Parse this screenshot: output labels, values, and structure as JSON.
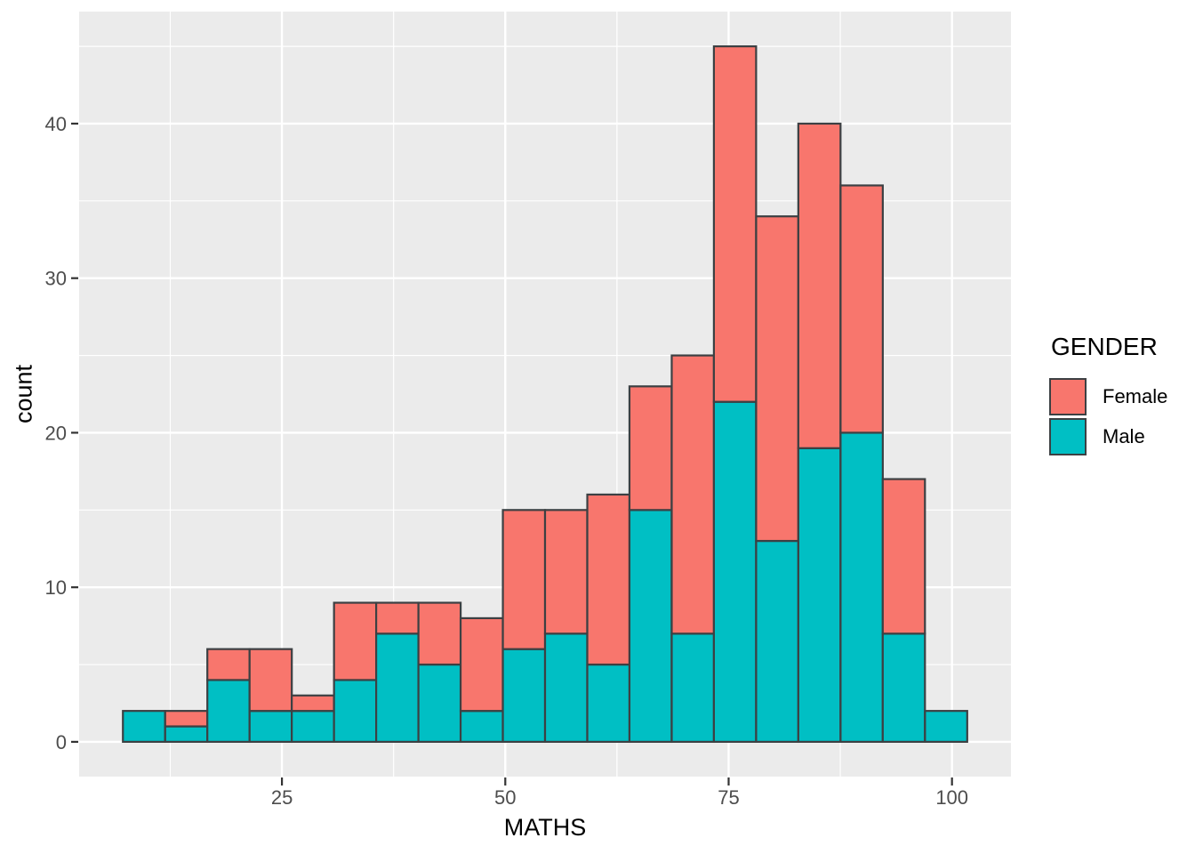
{
  "figure": {
    "background": "#FFFFFF"
  },
  "colors": {
    "panel_background": "#EBEBEB",
    "gridline": "#FFFFFF",
    "bar_outline": "#3C4043",
    "axis_text": "#4D4D4D",
    "tick_mark": "#333333",
    "axis_title": "#000000",
    "female": "#F8766D",
    "male": "#00BFC4"
  },
  "axes": {
    "x_title": "MATHS",
    "y_title": "count"
  },
  "legend": {
    "title": "GENDER",
    "entries": [
      {
        "label": "Female",
        "color": "#F8766D"
      },
      {
        "label": "Male",
        "color": "#00BFC4"
      }
    ]
  },
  "chart_data": {
    "type": "bar",
    "subtype": "stacked-histogram",
    "title": "",
    "xlabel": "MATHS",
    "ylabel": "count",
    "stacked": true,
    "grid": true,
    "legend_position": "right",
    "legend_title": "GENDER",
    "bin_width": 4.725,
    "bin_starts": [
      7.2,
      11.93,
      16.65,
      21.38,
      26.1,
      30.83,
      35.55,
      40.28,
      45.0,
      49.73,
      54.45,
      59.18,
      63.9,
      68.63,
      73.35,
      78.08,
      82.8,
      87.53,
      92.25,
      96.98
    ],
    "series": [
      {
        "name": "Male",
        "color": "#00BFC4",
        "values": [
          2,
          1,
          4,
          2,
          2,
          4,
          7,
          5,
          2,
          6,
          7,
          5,
          15,
          7,
          22,
          13,
          19,
          20,
          7,
          2
        ]
      },
      {
        "name": "Female",
        "color": "#F8766D",
        "values": [
          0,
          1,
          2,
          4,
          1,
          5,
          2,
          4,
          6,
          9,
          8,
          11,
          8,
          18,
          23,
          21,
          21,
          16,
          10,
          0
        ]
      }
    ],
    "totals": [
      2,
      2,
      6,
      6,
      3,
      9,
      9,
      9,
      8,
      15,
      15,
      16,
      23,
      25,
      45,
      34,
      40,
      36,
      17,
      2
    ],
    "x_ticks": [
      25,
      50,
      75,
      100
    ],
    "y_ticks": [
      0,
      10,
      20,
      30,
      40
    ],
    "x_minor_gridlines": [
      12.5,
      37.5,
      62.5,
      87.5
    ],
    "y_minor_gridlines": [
      5,
      15,
      25,
      35,
      45
    ],
    "xlim": [
      2.3,
      106.6
    ],
    "ylim": [
      -2.25,
      47.25
    ]
  }
}
